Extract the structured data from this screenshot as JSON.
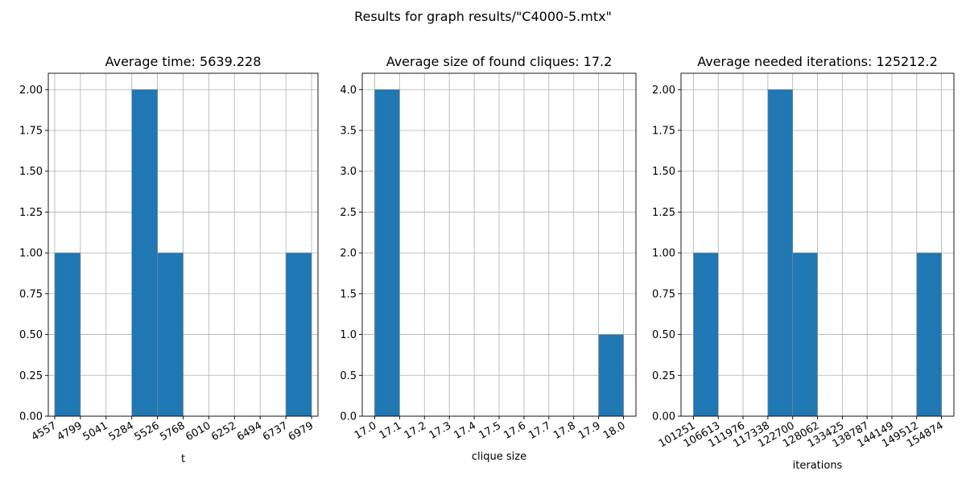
{
  "suptitle": "Results for graph results/\"C4000-5.mtx\"",
  "chart_data": [
    {
      "type": "bar",
      "title": "Average time: 5639.228",
      "xlabel": "t",
      "ylabel": "",
      "xlim": [
        4496.5,
        7039.5
      ],
      "ylim": [
        0,
        2.1
      ],
      "xticks": [
        4557,
        4799,
        5041,
        5284,
        5526,
        5768,
        6010,
        6252,
        6494,
        6737,
        6979
      ],
      "xtick_labels": [
        "4557",
        "4799",
        "5041",
        "5284",
        "5526",
        "5768",
        "6010",
        "6252",
        "6494",
        "6737",
        "6979"
      ],
      "yticks": [
        0,
        0.25,
        0.5,
        0.75,
        1.0,
        1.25,
        1.5,
        1.75,
        2.0
      ],
      "ytick_labels": [
        "0.00",
        "0.25",
        "0.50",
        "0.75",
        "1.00",
        "1.25",
        "1.50",
        "1.75",
        "2.00"
      ],
      "bins": [
        4557,
        4799,
        5041,
        5284,
        5526,
        5768,
        6010,
        6252,
        6494,
        6737,
        6979
      ],
      "counts": [
        1,
        0,
        0,
        2,
        1,
        0,
        0,
        0,
        0,
        1
      ],
      "grid": true
    },
    {
      "type": "bar",
      "title": "Average size of found cliques: 17.2",
      "xlabel": "clique size",
      "ylabel": "",
      "xlim": [
        16.95,
        18.05
      ],
      "ylim": [
        0,
        4.2
      ],
      "xticks": [
        17.0,
        17.1,
        17.2,
        17.3,
        17.4,
        17.5,
        17.6,
        17.7,
        17.8,
        17.9,
        18.0
      ],
      "xtick_labels": [
        "17.0",
        "17.1",
        "17.2",
        "17.3",
        "17.4",
        "17.5",
        "17.6",
        "17.7",
        "17.8",
        "17.9",
        "18.0"
      ],
      "yticks": [
        0,
        0.5,
        1.0,
        1.5,
        2.0,
        2.5,
        3.0,
        3.5,
        4.0
      ],
      "ytick_labels": [
        "0.0",
        "0.5",
        "1.0",
        "1.5",
        "2.0",
        "2.5",
        "3.0",
        "3.5",
        "4.0"
      ],
      "bins": [
        17.0,
        17.1,
        17.2,
        17.3,
        17.4,
        17.5,
        17.6,
        17.7,
        17.8,
        17.9,
        18.0
      ],
      "counts": [
        4,
        0,
        0,
        0,
        0,
        0,
        0,
        0,
        0,
        1
      ],
      "grid": true
    },
    {
      "type": "bar",
      "title": "Average needed iterations: 125212.2",
      "xlabel": "iterations",
      "ylabel": "",
      "xlim": [
        98570,
        157555
      ],
      "ylim": [
        0,
        2.1
      ],
      "xticks": [
        101251,
        106613,
        111976,
        117338,
        122700,
        128062,
        133425,
        138787,
        144149,
        149512,
        154874
      ],
      "xtick_labels": [
        "101251",
        "106613",
        "111976",
        "117338",
        "122700",
        "128062",
        "133425",
        "138787",
        "144149",
        "149512",
        "154874"
      ],
      "yticks": [
        0,
        0.25,
        0.5,
        0.75,
        1.0,
        1.25,
        1.5,
        1.75,
        2.0
      ],
      "ytick_labels": [
        "0.00",
        "0.25",
        "0.50",
        "0.75",
        "1.00",
        "1.25",
        "1.50",
        "1.75",
        "2.00"
      ],
      "bins": [
        101251,
        106613,
        111976,
        117338,
        122700,
        128062,
        133425,
        138787,
        144149,
        149512,
        154874
      ],
      "counts": [
        1,
        0,
        0,
        2,
        1,
        0,
        0,
        0,
        0,
        1
      ],
      "grid": true
    }
  ]
}
